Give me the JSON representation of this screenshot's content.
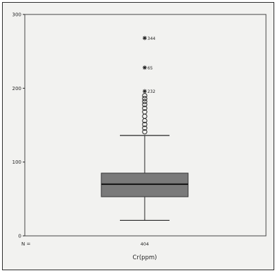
{
  "chart_data": {
    "type": "boxplot",
    "title": "",
    "xlabel": "Cr(ppm)",
    "ylabel": "",
    "n_label": "N =",
    "categories": [
      {
        "name": "",
        "n": "404"
      }
    ],
    "ylim": [
      0,
      300
    ],
    "yticks": [
      {
        "value": 0,
        "label": "0"
      },
      {
        "value": 100,
        "label": "100"
      },
      {
        "value": 200,
        "label": "200"
      },
      {
        "value": 300,
        "label": "300"
      }
    ],
    "box": {
      "whisker_low": 21,
      "q1": 53,
      "median": 70,
      "q3": 85,
      "whisker_high": 136
    },
    "outliers": [
      {
        "value": 141,
        "kind": "circle",
        "label": ""
      },
      {
        "value": 146,
        "kind": "circle",
        "label": ""
      },
      {
        "value": 151,
        "kind": "circle",
        "label": ""
      },
      {
        "value": 156,
        "kind": "circle",
        "label": ""
      },
      {
        "value": 162,
        "kind": "circle",
        "label": ""
      },
      {
        "value": 168,
        "kind": "circle",
        "label": ""
      },
      {
        "value": 173,
        "kind": "circle",
        "label": ""
      },
      {
        "value": 178,
        "kind": "circle",
        "label": ""
      },
      {
        "value": 182,
        "kind": "circle",
        "label": ""
      },
      {
        "value": 186,
        "kind": "circle",
        "label": ""
      },
      {
        "value": 190,
        "kind": "circle",
        "label": ""
      },
      {
        "value": 196,
        "kind": "star",
        "label": "232"
      },
      {
        "value": 228,
        "kind": "star",
        "label": "65"
      },
      {
        "value": 268,
        "kind": "star",
        "label": "344"
      }
    ],
    "grid": false,
    "colors": {
      "box": "#7a7a7a",
      "median": "#1a1a1a",
      "plot_bg": "#f2f2f0",
      "ink": "#222222"
    }
  }
}
